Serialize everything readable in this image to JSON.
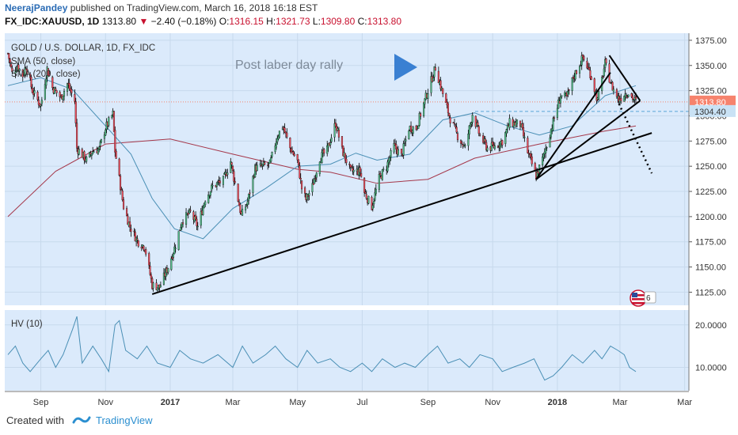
{
  "header": {
    "author": "NeerajPandey",
    "published_text": "published on TradingView.com, March 16, 2018 16:18 EST",
    "symbol": "FX_IDC:XAUUSD, 1D",
    "last": "1313.80",
    "change": "−2.40 (−0.18%)",
    "o_label": "O:",
    "o": "1316.15",
    "h_label": "H:",
    "h": "1321.73",
    "l_label": "L:",
    "l": "1309.80",
    "c_label": "C:",
    "c": "1313.80"
  },
  "legend": {
    "title": "GOLD / U.S. DOLLAR, 1D, FX_IDC",
    "ma50": "SMA (50, close)",
    "ma200": "SMA (200, close)"
  },
  "annotation": "Post laber day rally",
  "footer": {
    "created_with": "Created with",
    "brand": "TradingView"
  },
  "colors": {
    "bg": "#dbeafb",
    "up": "#53b987",
    "down": "#eb4d5c",
    "wick": "#000000",
    "ma50": "#4a8fb5",
    "ma200": "#a5374a",
    "hv": "#4a8fb5",
    "arrow": "#3a80d2",
    "price_tag": "#f6836d",
    "ref_tag": "#c9e2f5"
  },
  "chart_data": [
    {
      "type": "candlestick",
      "title": "GOLD / U.S. DOLLAR, 1D, FX_IDC",
      "ylim": [
        1112,
        1382
      ],
      "y_ticks": [
        1125,
        1150,
        1175,
        1200,
        1225,
        1250,
        1275,
        1300,
        1325,
        1350,
        1375
      ],
      "x_ticks": [
        "Sep",
        "Nov",
        "2017",
        "Mar",
        "May",
        "Jul",
        "Sep",
        "Nov",
        "2018",
        "Mar",
        "Mar"
      ],
      "last_price": 1313.8,
      "ref_price": 1304.4,
      "close_path": [
        [
          "2016-08-01",
          1362
        ],
        [
          "2016-08-05",
          1342
        ],
        [
          "2016-08-10",
          1350
        ],
        [
          "2016-08-15",
          1340
        ],
        [
          "2016-08-18",
          1350
        ],
        [
          "2016-08-24",
          1325
        ],
        [
          "2016-09-01",
          1310
        ],
        [
          "2016-09-07",
          1347
        ],
        [
          "2016-09-12",
          1328
        ],
        [
          "2016-09-20",
          1318
        ],
        [
          "2016-09-26",
          1332
        ],
        [
          "2016-10-03",
          1315
        ],
        [
          "2016-10-05",
          1268
        ],
        [
          "2016-10-14",
          1256
        ],
        [
          "2016-10-20",
          1265
        ],
        [
          "2016-10-26",
          1267
        ],
        [
          "2016-11-01",
          1288
        ],
        [
          "2016-11-08",
          1302
        ],
        [
          "2016-11-10",
          1265
        ],
        [
          "2016-11-18",
          1210
        ],
        [
          "2016-11-24",
          1190
        ],
        [
          "2016-12-01",
          1176
        ],
        [
          "2016-12-08",
          1170
        ],
        [
          "2016-12-15",
          1132
        ],
        [
          "2016-12-22",
          1130
        ],
        [
          "2016-12-30",
          1150
        ],
        [
          "2017-01-06",
          1172
        ],
        [
          "2017-01-12",
          1196
        ],
        [
          "2017-01-20",
          1204
        ],
        [
          "2017-01-27",
          1190
        ],
        [
          "2017-02-03",
          1218
        ],
        [
          "2017-02-10",
          1230
        ],
        [
          "2017-02-20",
          1236
        ],
        [
          "2017-02-27",
          1255
        ],
        [
          "2017-03-03",
          1233
        ],
        [
          "2017-03-09",
          1201
        ],
        [
          "2017-03-15",
          1215
        ],
        [
          "2017-03-22",
          1248
        ],
        [
          "2017-03-29",
          1250
        ],
        [
          "2017-04-05",
          1252
        ],
        [
          "2017-04-12",
          1280
        ],
        [
          "2017-04-17",
          1290
        ],
        [
          "2017-04-24",
          1268
        ],
        [
          "2017-05-01",
          1255
        ],
        [
          "2017-05-05",
          1228
        ],
        [
          "2017-05-09",
          1217
        ],
        [
          "2017-05-15",
          1230
        ],
        [
          "2017-05-22",
          1258
        ],
        [
          "2017-05-29",
          1266
        ],
        [
          "2017-06-06",
          1293
        ],
        [
          "2017-06-12",
          1266
        ],
        [
          "2017-06-20",
          1245
        ],
        [
          "2017-06-29",
          1245
        ],
        [
          "2017-07-03",
          1224
        ],
        [
          "2017-07-10",
          1210
        ],
        [
          "2017-07-17",
          1238
        ],
        [
          "2017-07-24",
          1250
        ],
        [
          "2017-07-31",
          1270
        ],
        [
          "2017-08-07",
          1260
        ],
        [
          "2017-08-14",
          1288
        ],
        [
          "2017-08-21",
          1288
        ],
        [
          "2017-08-28",
          1312
        ],
        [
          "2017-09-01",
          1325
        ],
        [
          "2017-09-08",
          1348
        ],
        [
          "2017-09-15",
          1322
        ],
        [
          "2017-09-22",
          1297
        ],
        [
          "2017-09-29",
          1280
        ],
        [
          "2017-10-06",
          1268
        ],
        [
          "2017-10-13",
          1302
        ],
        [
          "2017-10-20",
          1280
        ],
        [
          "2017-10-27",
          1268
        ],
        [
          "2017-11-03",
          1270
        ],
        [
          "2017-11-10",
          1275
        ],
        [
          "2017-11-17",
          1293
        ],
        [
          "2017-11-27",
          1292
        ],
        [
          "2017-12-04",
          1264
        ],
        [
          "2017-12-12",
          1240
        ],
        [
          "2017-12-19",
          1260
        ],
        [
          "2017-12-27",
          1290
        ],
        [
          "2018-01-04",
          1320
        ],
        [
          "2018-01-10",
          1318
        ],
        [
          "2018-01-16",
          1338
        ],
        [
          "2018-01-25",
          1358
        ],
        [
          "2018-02-01",
          1342
        ],
        [
          "2018-02-08",
          1315
        ],
        [
          "2018-02-15",
          1352
        ],
        [
          "2018-02-21",
          1330
        ],
        [
          "2018-02-28",
          1316
        ],
        [
          "2018-03-05",
          1322
        ],
        [
          "2018-03-09",
          1323
        ],
        [
          "2018-03-16",
          1313.8
        ]
      ],
      "sma50": [
        [
          "2016-08-01",
          1330
        ],
        [
          "2016-09-01",
          1338
        ],
        [
          "2016-10-01",
          1326
        ],
        [
          "2016-11-01",
          1290
        ],
        [
          "2016-11-25",
          1262
        ],
        [
          "2016-12-15",
          1218
        ],
        [
          "2017-01-05",
          1188
        ],
        [
          "2017-02-01",
          1178
        ],
        [
          "2017-03-01",
          1208
        ],
        [
          "2017-04-01",
          1228
        ],
        [
          "2017-05-01",
          1250
        ],
        [
          "2017-06-01",
          1252
        ],
        [
          "2017-06-25",
          1263
        ],
        [
          "2017-07-15",
          1256
        ],
        [
          "2017-08-15",
          1262
        ],
        [
          "2017-09-15",
          1296
        ],
        [
          "2017-10-15",
          1303
        ],
        [
          "2017-11-15",
          1290
        ],
        [
          "2017-12-15",
          1281
        ],
        [
          "2018-01-15",
          1290
        ],
        [
          "2018-02-15",
          1320
        ],
        [
          "2018-03-16",
          1330
        ]
      ],
      "sma200": [
        [
          "2016-08-01",
          1200
        ],
        [
          "2016-09-15",
          1245
        ],
        [
          "2016-11-01",
          1272
        ],
        [
          "2017-01-01",
          1277
        ],
        [
          "2017-03-01",
          1262
        ],
        [
          "2017-05-01",
          1247
        ],
        [
          "2017-06-01",
          1244
        ],
        [
          "2017-07-15",
          1233
        ],
        [
          "2017-09-01",
          1237
        ],
        [
          "2017-10-15",
          1258
        ],
        [
          "2017-12-15",
          1272
        ],
        [
          "2018-02-15",
          1285
        ],
        [
          "2018-03-16",
          1290
        ]
      ],
      "trendlines": [
        {
          "from": [
            "2016-12-15",
            1123
          ],
          "to": [
            "2018-03-31",
            1283
          ],
          "style": "solid"
        },
        {
          "from": [
            "2017-12-12",
            1237
          ],
          "to": [
            "2018-03-20",
            1315
          ],
          "style": "solid"
        },
        {
          "from": [
            "2017-12-12",
            1237
          ],
          "to": [
            "2018-02-20",
            1343
          ],
          "style": "solid"
        },
        {
          "from": [
            "2018-02-19",
            1360
          ],
          "to": [
            "2018-03-20",
            1315
          ],
          "style": "solid"
        },
        {
          "from": [
            "2018-02-28",
            1312
          ],
          "to": [
            "2018-03-31",
            1243
          ],
          "style": "dotted"
        }
      ]
    },
    {
      "type": "line",
      "title": "HV (10)",
      "ylim": [
        4.5,
        23.5
      ],
      "y_ticks": [
        10,
        20
      ],
      "y_tick_labels": [
        "10.0000",
        "20.0000"
      ],
      "series": [
        {
          "name": "HV (10)",
          "points": [
            [
              "2016-08-01",
              13
            ],
            [
              "2016-08-08",
              15
            ],
            [
              "2016-08-15",
              11
            ],
            [
              "2016-08-22",
              9
            ],
            [
              "2016-09-01",
              12
            ],
            [
              "2016-09-08",
              14
            ],
            [
              "2016-09-15",
              10
            ],
            [
              "2016-09-22",
              13
            ],
            [
              "2016-10-01",
              19
            ],
            [
              "2016-10-05",
              22
            ],
            [
              "2016-10-10",
              11
            ],
            [
              "2016-10-20",
              15
            ],
            [
              "2016-10-28",
              12
            ],
            [
              "2016-11-04",
              9
            ],
            [
              "2016-11-10",
              20
            ],
            [
              "2016-11-14",
              21
            ],
            [
              "2016-11-20",
              14
            ],
            [
              "2016-12-01",
              12
            ],
            [
              "2016-12-10",
              15
            ],
            [
              "2016-12-20",
              11
            ],
            [
              "2017-01-01",
              10
            ],
            [
              "2017-01-10",
              14
            ],
            [
              "2017-01-20",
              12
            ],
            [
              "2017-02-01",
              11
            ],
            [
              "2017-02-15",
              13
            ],
            [
              "2017-03-01",
              10
            ],
            [
              "2017-03-10",
              15
            ],
            [
              "2017-03-20",
              11
            ],
            [
              "2017-04-01",
              13
            ],
            [
              "2017-04-10",
              15
            ],
            [
              "2017-04-20",
              12
            ],
            [
              "2017-05-01",
              10
            ],
            [
              "2017-05-10",
              14
            ],
            [
              "2017-05-20",
              11
            ],
            [
              "2017-06-01",
              12
            ],
            [
              "2017-06-10",
              10
            ],
            [
              "2017-06-20",
              9
            ],
            [
              "2017-07-01",
              11
            ],
            [
              "2017-07-10",
              9
            ],
            [
              "2017-07-20",
              12
            ],
            [
              "2017-08-01",
              10
            ],
            [
              "2017-08-10",
              11
            ],
            [
              "2017-08-20",
              10
            ],
            [
              "2017-09-01",
              13
            ],
            [
              "2017-09-10",
              15
            ],
            [
              "2017-09-20",
              11
            ],
            [
              "2017-10-01",
              12
            ],
            [
              "2017-10-10",
              10
            ],
            [
              "2017-10-20",
              13
            ],
            [
              "2017-11-01",
              12
            ],
            [
              "2017-11-10",
              9
            ],
            [
              "2017-11-20",
              10
            ],
            [
              "2017-12-01",
              11
            ],
            [
              "2017-12-10",
              12
            ],
            [
              "2017-12-20",
              7
            ],
            [
              "2017-12-28",
              8
            ],
            [
              "2018-01-05",
              10
            ],
            [
              "2018-01-15",
              13
            ],
            [
              "2018-01-25",
              11
            ],
            [
              "2018-02-05",
              14
            ],
            [
              "2018-02-12",
              12
            ],
            [
              "2018-02-20",
              15
            ],
            [
              "2018-02-27",
              14
            ],
            [
              "2018-03-05",
              13
            ],
            [
              "2018-03-10",
              10
            ],
            [
              "2018-03-16",
              9
            ]
          ]
        }
      ]
    }
  ]
}
